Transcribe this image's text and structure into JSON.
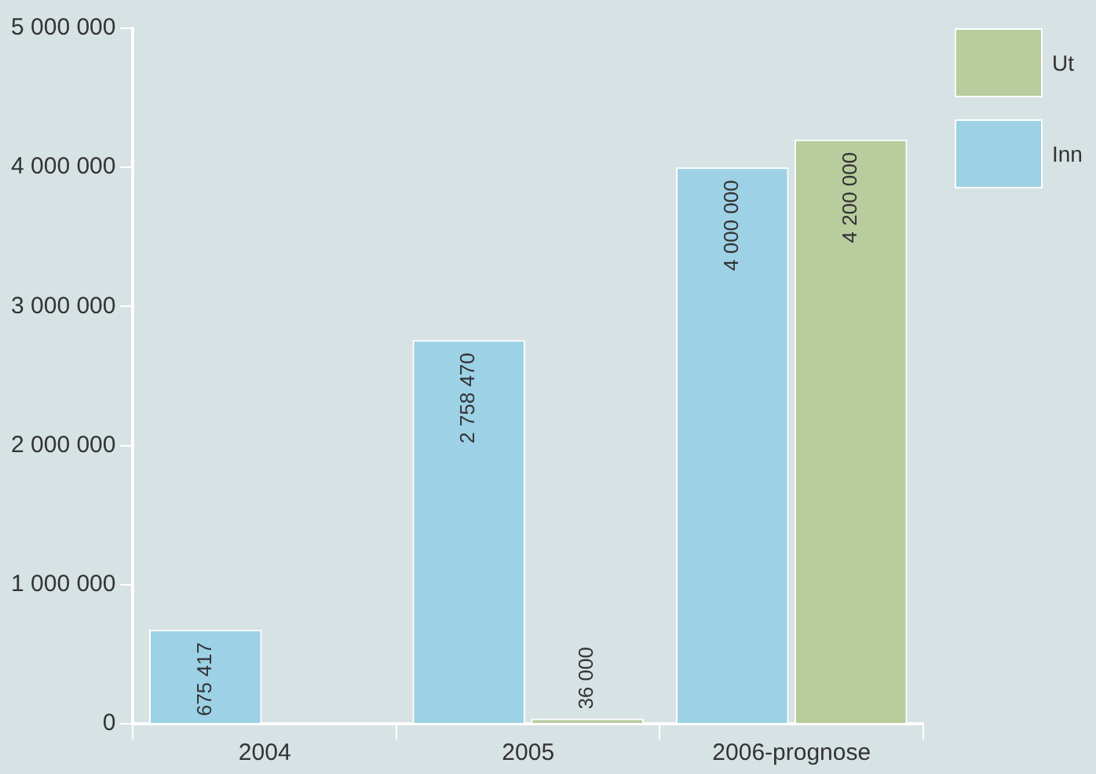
{
  "chart_data": {
    "type": "bar",
    "categories": [
      "2004",
      "2005",
      "2006-prognose"
    ],
    "series": [
      {
        "name": "Inn",
        "color": "#9dd1e6",
        "values": [
          675417,
          2758470,
          4000000
        ]
      },
      {
        "name": "Ut",
        "color": "#b9cc9d",
        "values": [
          null,
          36000,
          4200000
        ]
      }
    ],
    "ylim": [
      0,
      5000000
    ],
    "yticks": [
      {
        "value": 0,
        "label": "0"
      },
      {
        "value": 1000000,
        "label": "1 000 000"
      },
      {
        "value": 2000000,
        "label": "2 000 000"
      },
      {
        "value": 3000000,
        "label": "3 000 000"
      },
      {
        "value": 4000000,
        "label": "4 000 000"
      },
      {
        "value": 5000000,
        "label": "5 000 000"
      }
    ],
    "grid": false,
    "legend": "top right",
    "data_labels": true
  }
}
